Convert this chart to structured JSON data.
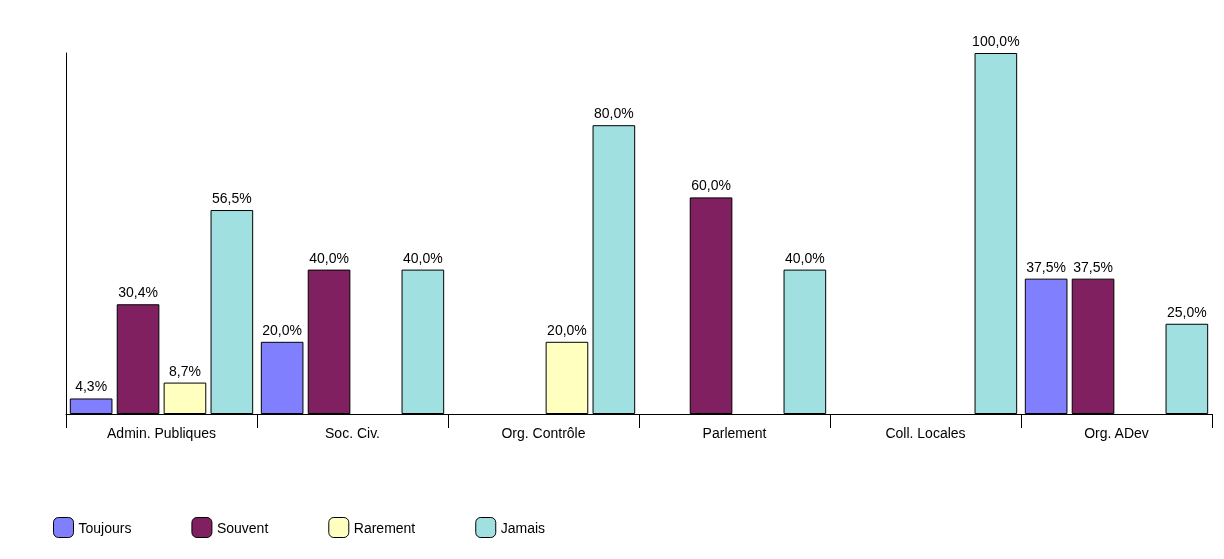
{
  "chart_data": {
    "type": "bar",
    "categories": [
      "Admin. Publiques",
      "Soc. Civ.",
      "Org. Contrôle",
      "Parlement",
      "Coll. Locales",
      "Org. ADev"
    ],
    "series": [
      {
        "name": "Toujours",
        "color": "#8080ff",
        "values": [
          4.3,
          20.0,
          null,
          null,
          null,
          37.5
        ],
        "value_labels": [
          "4,3%",
          "20,0%",
          null,
          null,
          null,
          "37,5%"
        ]
      },
      {
        "name": "Souvent",
        "color": "#802060",
        "values": [
          30.4,
          40.0,
          null,
          60.0,
          null,
          37.5
        ],
        "value_labels": [
          "30,4%",
          "40,0%",
          null,
          "60,0%",
          null,
          "37,5%"
        ]
      },
      {
        "name": "Rarement",
        "color": "#ffffc0",
        "values": [
          8.7,
          null,
          20.0,
          null,
          null,
          null
        ],
        "value_labels": [
          "8,7%",
          null,
          "20,0%",
          null,
          null,
          null
        ]
      },
      {
        "name": "Jamais",
        "color": "#a0e0e0",
        "values": [
          56.5,
          40.0,
          80.0,
          40.0,
          100.0,
          25.0
        ],
        "value_labels": [
          "56,5%",
          "40,0%",
          "80,0%",
          "40,0%",
          "100,0%",
          "25,0%"
        ]
      }
    ],
    "tick_labels": "x",
    "grid": false,
    "legend": "bottom left"
  }
}
